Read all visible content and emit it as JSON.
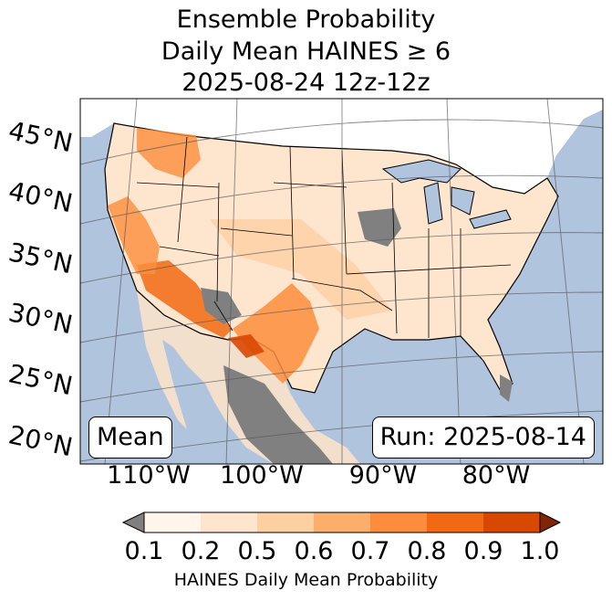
{
  "title": {
    "line1": "Ensemble Probability",
    "line2": "Daily Mean HAINES ≥ 6",
    "line3": "2025-08-24 12z-12z"
  },
  "map": {
    "lat_labels": [
      "45°N",
      "40°N",
      "35°N",
      "30°N",
      "25°N",
      "20°N"
    ],
    "lon_labels": [
      "110°W",
      "100°W",
      "90°W",
      "80°W"
    ],
    "stat_box": "Mean",
    "run_box": "Run: 2025-08-14",
    "colors": {
      "ocean": "#b0c4de",
      "land_outside": "#ffffff",
      "missing": "#808080",
      "border": "#000000",
      "grid": "#555555"
    }
  },
  "colorbar": {
    "label": "HAINES Daily Mean Probability",
    "ticks": [
      "0.1",
      "0.2",
      "0.5",
      "0.6",
      "0.7",
      "0.8",
      "0.9",
      "1.0"
    ],
    "under_color": "#808080",
    "over_color": "#7f2704",
    "colors": [
      "#fff5eb",
      "#fee6ce",
      "#fdd0a2",
      "#fdae6b",
      "#fd8d3c",
      "#f16913",
      "#d94801"
    ]
  }
}
